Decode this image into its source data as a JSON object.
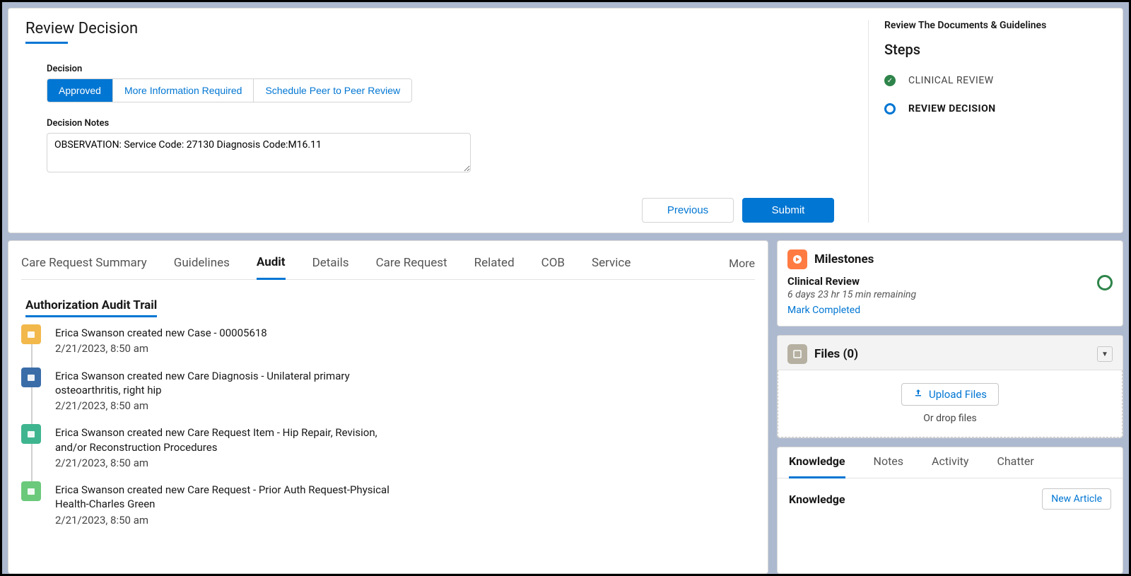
{
  "review": {
    "title": "Review Decision",
    "decisionLabel": "Decision",
    "options": [
      "Approved",
      "More Information Required",
      "Schedule Peer to Peer Review"
    ],
    "selectedIndex": 0,
    "notesLabel": "Decision Notes",
    "notesValue": "OBSERVATION: Service Code: 27130 Diagnosis Code:M16.11",
    "previous": "Previous",
    "submit": "Submit"
  },
  "stepsPanel": {
    "heading": "Review The Documents & Guidelines",
    "stepsTitle": "Steps",
    "steps": [
      {
        "label": "CLINICAL REVIEW",
        "state": "done"
      },
      {
        "label": "REVIEW DECISION",
        "state": "active"
      }
    ]
  },
  "tabs": {
    "items": [
      "Care Request Summary",
      "Guidelines",
      "Audit",
      "Details",
      "Care Request",
      "Related",
      "COB",
      "Service"
    ],
    "activeIndex": 2,
    "more": "More"
  },
  "audit": {
    "title": "Authorization Audit Trail",
    "items": [
      {
        "text": "Erica Swanson created new Case - 00005618",
        "ts": "2/21/2023, 8:50 am",
        "color": "#f2b84b"
      },
      {
        "text": "Erica Swanson created new Care Diagnosis - Unilateral primary osteoarthritis, right hip",
        "ts": "2/21/2023, 8:50 am",
        "color": "#3a6da8"
      },
      {
        "text": "Erica Swanson created new Care Request Item - Hip Repair, Revision, and/or Reconstruction Procedures",
        "ts": "2/21/2023, 8:50 am",
        "color": "#3fb58f"
      },
      {
        "text": "Erica Swanson created new Care Request - Prior Auth Request-Physical Health-Charles Green",
        "ts": "2/21/2023, 8:50 am",
        "color": "#6bc97b"
      }
    ]
  },
  "milestones": {
    "title": "Milestones",
    "name": "Clinical Review",
    "remaining": "6 days 23 hr 15 min remaining",
    "mark": "Mark Completed",
    "iconBg": "#ff7b42"
  },
  "files": {
    "title": "Files (0)",
    "upload": "Upload Files",
    "drop": "Or drop files",
    "iconBg": "#b5b0a1"
  },
  "knowledge": {
    "tabs": [
      "Knowledge",
      "Notes",
      "Activity",
      "Chatter"
    ],
    "activeIndex": 0,
    "panelTitle": "Knowledge",
    "newArticle": "New Article"
  },
  "colors": {
    "accent": "#0176d3",
    "success": "#2e844a"
  }
}
